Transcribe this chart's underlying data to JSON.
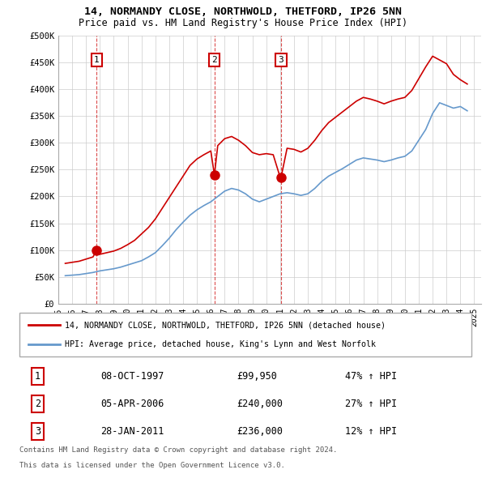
{
  "title": "14, NORMANDY CLOSE, NORTHWOLD, THETFORD, IP26 5NN",
  "subtitle": "Price paid vs. HM Land Registry's House Price Index (HPI)",
  "legend_line1": "14, NORMANDY CLOSE, NORTHWOLD, THETFORD, IP26 5NN (detached house)",
  "legend_line2": "HPI: Average price, detached house, King's Lynn and West Norfolk",
  "footer1": "Contains HM Land Registry data © Crown copyright and database right 2024.",
  "footer2": "This data is licensed under the Open Government Licence v3.0.",
  "sale_labels": [
    "1",
    "2",
    "3"
  ],
  "sale_dates_str": [
    "08-OCT-1997",
    "05-APR-2006",
    "28-JAN-2011"
  ],
  "sale_prices_str": [
    "£99,950",
    "£240,000",
    "£236,000"
  ],
  "sale_hpi_str": [
    "47% ↑ HPI",
    "27% ↑ HPI",
    "12% ↑ HPI"
  ],
  "sale_years": [
    1997.77,
    2006.26,
    2011.07
  ],
  "sale_prices": [
    99950,
    240000,
    236000
  ],
  "ylim": [
    0,
    500000
  ],
  "yticks": [
    0,
    50000,
    100000,
    150000,
    200000,
    250000,
    300000,
    350000,
    400000,
    450000,
    500000
  ],
  "xlim_start": 1995.0,
  "xlim_end": 2025.5,
  "red_color": "#cc0000",
  "blue_color": "#6699cc",
  "bg_color": "#ffffff",
  "grid_color": "#cccccc",
  "hpi_data": {
    "years": [
      1995.5,
      1996.0,
      1996.5,
      1997.0,
      1997.5,
      1998.0,
      1998.5,
      1999.0,
      1999.5,
      2000.0,
      2000.5,
      2001.0,
      2001.5,
      2002.0,
      2002.5,
      2003.0,
      2003.5,
      2004.0,
      2004.5,
      2005.0,
      2005.5,
      2006.0,
      2006.5,
      2007.0,
      2007.5,
      2008.0,
      2008.5,
      2009.0,
      2009.5,
      2010.0,
      2010.5,
      2011.0,
      2011.5,
      2012.0,
      2012.5,
      2013.0,
      2013.5,
      2014.0,
      2014.5,
      2015.0,
      2015.5,
      2016.0,
      2016.5,
      2017.0,
      2017.5,
      2018.0,
      2018.5,
      2019.0,
      2019.5,
      2020.0,
      2020.5,
      2021.0,
      2021.5,
      2022.0,
      2022.5,
      2023.0,
      2023.5,
      2024.0,
      2024.5
    ],
    "values": [
      52000,
      53000,
      54000,
      56000,
      58000,
      61000,
      63000,
      65000,
      68000,
      72000,
      76000,
      80000,
      87000,
      95000,
      108000,
      122000,
      138000,
      152000,
      165000,
      175000,
      183000,
      190000,
      200000,
      210000,
      215000,
      212000,
      205000,
      195000,
      190000,
      195000,
      200000,
      205000,
      207000,
      205000,
      202000,
      205000,
      215000,
      228000,
      238000,
      245000,
      252000,
      260000,
      268000,
      272000,
      270000,
      268000,
      265000,
      268000,
      272000,
      275000,
      285000,
      305000,
      325000,
      355000,
      375000,
      370000,
      365000,
      368000,
      360000
    ]
  },
  "red_data": {
    "years": [
      1995.5,
      1996.0,
      1996.5,
      1997.0,
      1997.5,
      1997.77,
      1998.0,
      1998.5,
      1999.0,
      1999.5,
      2000.0,
      2000.5,
      2001.0,
      2001.5,
      2002.0,
      2002.5,
      2003.0,
      2003.5,
      2004.0,
      2004.5,
      2005.0,
      2005.5,
      2006.0,
      2006.26,
      2006.5,
      2007.0,
      2007.5,
      2008.0,
      2008.5,
      2009.0,
      2009.5,
      2010.0,
      2010.5,
      2011.0,
      2011.07,
      2011.5,
      2012.0,
      2012.5,
      2013.0,
      2013.5,
      2014.0,
      2014.5,
      2015.0,
      2015.5,
      2016.0,
      2016.5,
      2017.0,
      2017.5,
      2018.0,
      2018.5,
      2019.0,
      2019.5,
      2020.0,
      2020.5,
      2021.0,
      2021.5,
      2022.0,
      2022.5,
      2023.0,
      2023.5,
      2024.0,
      2024.5
    ],
    "values": [
      75000,
      77000,
      79000,
      83000,
      87000,
      99950,
      92000,
      95000,
      98000,
      103000,
      110000,
      118000,
      130000,
      142000,
      158000,
      178000,
      198000,
      218000,
      238000,
      258000,
      270000,
      278000,
      285000,
      240000,
      295000,
      308000,
      312000,
      305000,
      295000,
      282000,
      278000,
      280000,
      278000,
      236000,
      236000,
      290000,
      288000,
      283000,
      290000,
      305000,
      323000,
      338000,
      348000,
      358000,
      368000,
      378000,
      385000,
      382000,
      378000,
      373000,
      378000,
      382000,
      385000,
      398000,
      420000,
      442000,
      462000,
      455000,
      448000,
      428000,
      418000,
      410000
    ]
  }
}
